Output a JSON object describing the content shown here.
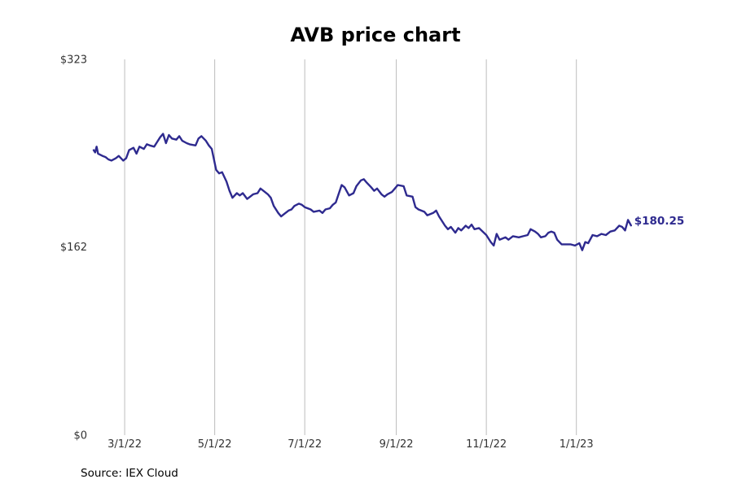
{
  "chart_data": {
    "type": "line",
    "title": "AVB price chart",
    "xlabel": "",
    "ylabel": "",
    "yticks": [
      "$0",
      "$162",
      "$323"
    ],
    "ylim": [
      0,
      323
    ],
    "xticks": [
      {
        "date": "2022-03-01",
        "label": "3/1/22"
      },
      {
        "date": "2022-05-01",
        "label": "5/1/22"
      },
      {
        "date": "2022-07-01",
        "label": "7/1/22"
      },
      {
        "date": "2022-09-01",
        "label": "9/1/22"
      },
      {
        "date": "2022-11-01",
        "label": "11/1/22"
      },
      {
        "date": "2023-01-01",
        "label": "1/1/23"
      }
    ],
    "xlim": [
      "2022-02-08",
      "2023-03-15"
    ],
    "grid": "vertical",
    "color": "#2e2a8f",
    "series": [
      {
        "end_label": "$180.25",
        "points": [
          [
            "2022-02-08",
            245
          ],
          [
            "2022-02-09",
            243
          ],
          [
            "2022-02-10",
            248
          ],
          [
            "2022-02-11",
            242
          ],
          [
            "2022-02-14",
            240
          ],
          [
            "2022-02-16",
            239
          ],
          [
            "2022-02-18",
            237
          ],
          [
            "2022-02-20",
            236
          ],
          [
            "2022-02-23",
            238
          ],
          [
            "2022-02-25",
            240
          ],
          [
            "2022-02-28",
            236
          ],
          [
            "2022-03-02",
            238
          ],
          [
            "2022-03-04",
            245
          ],
          [
            "2022-03-07",
            247
          ],
          [
            "2022-03-09",
            242
          ],
          [
            "2022-03-11",
            248
          ],
          [
            "2022-03-14",
            246
          ],
          [
            "2022-03-16",
            250
          ],
          [
            "2022-03-18",
            249
          ],
          [
            "2022-03-21",
            248
          ],
          [
            "2022-03-23",
            252
          ],
          [
            "2022-03-25",
            256
          ],
          [
            "2022-03-27",
            259
          ],
          [
            "2022-03-29",
            251
          ],
          [
            "2022-03-31",
            258
          ],
          [
            "2022-04-02",
            255
          ],
          [
            "2022-04-05",
            254
          ],
          [
            "2022-04-07",
            257
          ],
          [
            "2022-04-09",
            253
          ],
          [
            "2022-04-12",
            251
          ],
          [
            "2022-04-14",
            250
          ],
          [
            "2022-04-18",
            249
          ],
          [
            "2022-04-20",
            255
          ],
          [
            "2022-04-22",
            257
          ],
          [
            "2022-04-25",
            253
          ],
          [
            "2022-04-27",
            249
          ],
          [
            "2022-04-29",
            246
          ],
          [
            "2022-05-02",
            228
          ],
          [
            "2022-05-04",
            225
          ],
          [
            "2022-05-06",
            226
          ],
          [
            "2022-05-09",
            218
          ],
          [
            "2022-05-11",
            210
          ],
          [
            "2022-05-13",
            204
          ],
          [
            "2022-05-16",
            208
          ],
          [
            "2022-05-18",
            206
          ],
          [
            "2022-05-20",
            208
          ],
          [
            "2022-05-23",
            203
          ],
          [
            "2022-05-25",
            205
          ],
          [
            "2022-05-27",
            207
          ],
          [
            "2022-05-30",
            208
          ],
          [
            "2022-06-01",
            212
          ],
          [
            "2022-06-03",
            210
          ],
          [
            "2022-06-06",
            207
          ],
          [
            "2022-06-08",
            204
          ],
          [
            "2022-06-10",
            197
          ],
          [
            "2022-06-13",
            191
          ],
          [
            "2022-06-15",
            188
          ],
          [
            "2022-06-17",
            190
          ],
          [
            "2022-06-20",
            193
          ],
          [
            "2022-06-22",
            194
          ],
          [
            "2022-06-24",
            197
          ],
          [
            "2022-06-27",
            199
          ],
          [
            "2022-06-29",
            198
          ],
          [
            "2022-07-01",
            196
          ],
          [
            "2022-07-05",
            194
          ],
          [
            "2022-07-07",
            192
          ],
          [
            "2022-07-11",
            193
          ],
          [
            "2022-07-13",
            191
          ],
          [
            "2022-07-15",
            194
          ],
          [
            "2022-07-18",
            195
          ],
          [
            "2022-07-20",
            198
          ],
          [
            "2022-07-22",
            200
          ],
          [
            "2022-07-26",
            215
          ],
          [
            "2022-07-28",
            213
          ],
          [
            "2022-07-31",
            206
          ],
          [
            "2022-08-03",
            208
          ],
          [
            "2022-08-05",
            214
          ],
          [
            "2022-08-08",
            219
          ],
          [
            "2022-08-10",
            220
          ],
          [
            "2022-08-12",
            217
          ],
          [
            "2022-08-15",
            213
          ],
          [
            "2022-08-17",
            210
          ],
          [
            "2022-08-19",
            212
          ],
          [
            "2022-08-22",
            207
          ],
          [
            "2022-08-24",
            205
          ],
          [
            "2022-08-26",
            207
          ],
          [
            "2022-08-29",
            209
          ],
          [
            "2022-08-31",
            212
          ],
          [
            "2022-09-02",
            215
          ],
          [
            "2022-09-06",
            214
          ],
          [
            "2022-09-08",
            206
          ],
          [
            "2022-09-12",
            205
          ],
          [
            "2022-09-14",
            196
          ],
          [
            "2022-09-16",
            194
          ],
          [
            "2022-09-20",
            192
          ],
          [
            "2022-09-22",
            189
          ],
          [
            "2022-09-26",
            191
          ],
          [
            "2022-09-28",
            193
          ],
          [
            "2022-09-30",
            188
          ],
          [
            "2022-10-04",
            180
          ],
          [
            "2022-10-06",
            177
          ],
          [
            "2022-10-08",
            179
          ],
          [
            "2022-10-11",
            174
          ],
          [
            "2022-10-13",
            178
          ],
          [
            "2022-10-15",
            176
          ],
          [
            "2022-10-18",
            180
          ],
          [
            "2022-10-20",
            178
          ],
          [
            "2022-10-22",
            181
          ],
          [
            "2022-10-24",
            177
          ],
          [
            "2022-10-27",
            178
          ],
          [
            "2022-11-01",
            172
          ],
          [
            "2022-11-04",
            166
          ],
          [
            "2022-11-06",
            163
          ],
          [
            "2022-11-08",
            173
          ],
          [
            "2022-11-10",
            168
          ],
          [
            "2022-11-14",
            170
          ],
          [
            "2022-11-16",
            168
          ],
          [
            "2022-11-19",
            171
          ],
          [
            "2022-11-23",
            170
          ],
          [
            "2022-11-26",
            171
          ],
          [
            "2022-11-29",
            172
          ],
          [
            "2022-12-01",
            177
          ],
          [
            "2022-12-04",
            175
          ],
          [
            "2022-12-06",
            173
          ],
          [
            "2022-12-08",
            170
          ],
          [
            "2022-12-11",
            171
          ],
          [
            "2022-12-13",
            174
          ],
          [
            "2022-12-15",
            175
          ],
          [
            "2022-12-17",
            174
          ],
          [
            "2022-12-19",
            168
          ],
          [
            "2022-12-22",
            164
          ],
          [
            "2022-12-25",
            164
          ],
          [
            "2022-12-28",
            164
          ],
          [
            "2022-12-31",
            163
          ],
          [
            "2023-01-03",
            165
          ],
          [
            "2023-01-05",
            159
          ],
          [
            "2023-01-07",
            166
          ],
          [
            "2023-01-09",
            165
          ],
          [
            "2023-01-12",
            172
          ],
          [
            "2023-01-15",
            171
          ],
          [
            "2023-01-18",
            173
          ],
          [
            "2023-01-21",
            172
          ],
          [
            "2023-01-24",
            175
          ],
          [
            "2023-01-27",
            176
          ],
          [
            "2023-01-30",
            180
          ],
          [
            "2023-02-01",
            179
          ],
          [
            "2023-02-03",
            176
          ],
          [
            "2023-02-05",
            185
          ],
          [
            "2023-02-07",
            180.25
          ]
        ]
      }
    ]
  },
  "footer": {
    "source": "Source: IEX Cloud"
  }
}
